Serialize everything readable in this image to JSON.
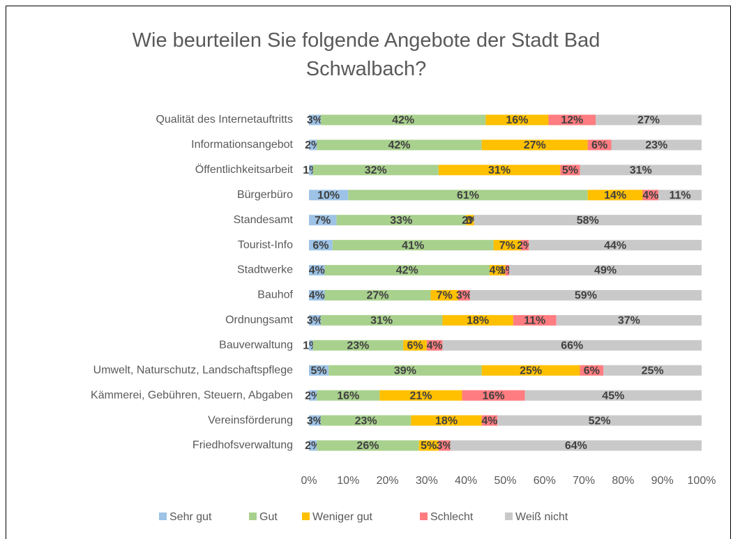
{
  "chart_data": {
    "type": "stacked-bar-horizontal",
    "title": "Wie beurteilen Sie folgende Angebote der Stadt Bad Schwalbach?",
    "categories": [
      "Qualität des Internetauftritts",
      "Informationsangebot",
      "Öffentlichkeitsarbeit",
      "Bürgerbüro",
      "Standesamt",
      "Tourist-Info",
      "Stadtwerke",
      "Bauhof",
      "Ordnungsamt",
      "Bauverwaltung",
      "Umwelt, Naturschutz, Landschaftspflege",
      "Kämmerei, Gebühren, Steuern, Abgaben",
      "Vereinsförderung",
      "Friedhofsverwaltung"
    ],
    "series": [
      {
        "name": "Sehr gut",
        "color": "#9dc3e6",
        "values": [
          3,
          2,
          1,
          10,
          7,
          6,
          4,
          4,
          3,
          1,
          5,
          2,
          3,
          2
        ],
        "value_labels": [
          "3%",
          "2%",
          "1%",
          "10%",
          "7%",
          "6%",
          "4%",
          "4%",
          "3%",
          "1%",
          "5%",
          "2%",
          "3%",
          "2%"
        ]
      },
      {
        "name": "Gut",
        "color": "#a9d18e",
        "values": [
          42,
          42,
          32,
          61,
          33,
          41,
          42,
          27,
          31,
          23,
          39,
          16,
          23,
          26
        ],
        "value_labels": [
          "42%",
          "42%",
          "32%",
          "61%",
          "33%",
          "41%",
          "42%",
          "27%",
          "31%",
          "23%",
          "39%",
          "16%",
          "23%",
          "26%"
        ]
      },
      {
        "name": "Weniger gut",
        "color": "#ffc000",
        "values": [
          16,
          27,
          31,
          14,
          2,
          7,
          4,
          7,
          18,
          6,
          25,
          21,
          18,
          5
        ],
        "value_labels": [
          "16%",
          "27%",
          "31%",
          "14%",
          "2%",
          "7%",
          "4%",
          "7%",
          "18%",
          "6%",
          "25%",
          "21%",
          "18%",
          "5%"
        ]
      },
      {
        "name": "Schlecht",
        "color": "#ff7c80",
        "values": [
          12,
          6,
          5,
          4,
          0,
          2,
          1,
          3,
          11,
          4,
          6,
          16,
          4,
          3
        ],
        "value_labels": [
          "12%",
          "6%",
          "5%",
          "4%",
          "0%",
          "2%",
          "1%",
          "3%",
          "11%",
          "4%",
          "6%",
          "16%",
          "4%",
          "3%"
        ]
      },
      {
        "name": "Weiß nicht",
        "color": "#c9c9c9",
        "values": [
          27,
          23,
          31,
          11,
          58,
          44,
          49,
          59,
          37,
          66,
          25,
          45,
          52,
          64
        ],
        "value_labels": [
          "27%",
          "23%",
          "31%",
          "11%",
          "58%",
          "44%",
          "49%",
          "59%",
          "37%",
          "66%",
          "25%",
          "45%",
          "52%",
          "64%"
        ]
      }
    ],
    "xlim": [
      0,
      100
    ],
    "xticks": [
      {
        "value": 0,
        "label": "0%"
      },
      {
        "value": 10,
        "label": "10%"
      },
      {
        "value": 20,
        "label": "20%"
      },
      {
        "value": 30,
        "label": "30%"
      },
      {
        "value": 40,
        "label": "40%"
      },
      {
        "value": 50,
        "label": "50%"
      },
      {
        "value": 60,
        "label": "60%"
      },
      {
        "value": 70,
        "label": "70%"
      },
      {
        "value": 80,
        "label": "80%"
      },
      {
        "value": 90,
        "label": "90%"
      },
      {
        "value": 100,
        "label": "100%"
      }
    ],
    "legend": "bottom"
  }
}
